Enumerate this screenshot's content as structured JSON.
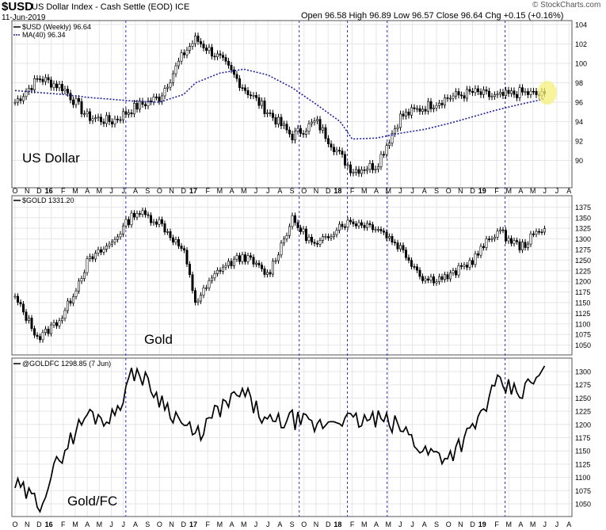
{
  "header": {
    "symbol": "$USD",
    "description": "US Dollar Index - Cash Settle (EOD) ICE",
    "date": "11-Jun-2019",
    "ohlc": "Open 96.58 High 96.89 Low 96.57 Close 96.64 Chg +0.15 (+0.16%)",
    "brand": "© StockCharts.com"
  },
  "colors": {
    "candle": "#000000",
    "ma_line": "#2020a0",
    "vline": "#3030c0",
    "highlight": "#f5f07a",
    "grid": "#e6e6e6"
  },
  "x_axis": {
    "labels": [
      "O",
      "N",
      "D",
      "16",
      "F",
      "M",
      "A",
      "M",
      "J",
      "J",
      "A",
      "S",
      "O",
      "N",
      "D",
      "17",
      "F",
      "M",
      "A",
      "M",
      "J",
      "J",
      "A",
      "S",
      "O",
      "N",
      "D",
      "18",
      "F",
      "M",
      "A",
      "M",
      "J",
      "J",
      "A",
      "S",
      "O",
      "N",
      "D",
      "19",
      "F",
      "M",
      "A",
      "M",
      "J",
      "J",
      "A"
    ],
    "bold": [
      "16",
      "17",
      "18",
      "19"
    ]
  },
  "chart_data": [
    {
      "type": "candlestick",
      "legend": [
        "$USD (Weekly) 96.64",
        "MA(40) 96.34"
      ],
      "annotation": "US Dollar",
      "ylim": [
        88,
        104
      ],
      "yticks": [
        90,
        92,
        94,
        96,
        98,
        100,
        102,
        104
      ],
      "x": [
        "2015-10",
        "2015-12",
        "2016-02",
        "2016-04",
        "2016-06",
        "2016-08",
        "2016-10",
        "2016-12",
        "2017-01",
        "2017-03",
        "2017-05",
        "2017-07",
        "2017-09",
        "2017-11",
        "2018-01",
        "2018-02",
        "2018-04",
        "2018-06",
        "2018-08",
        "2018-10",
        "2018-12",
        "2019-02",
        "2019-04",
        "2019-06"
      ],
      "series": [
        {
          "name": "$USD (Weekly)",
          "values": [
            96.0,
            98.5,
            97.5,
            94.5,
            94.0,
            95.5,
            96.5,
            101.0,
            102.5,
            100.5,
            97.5,
            95.0,
            92.5,
            94.0,
            90.5,
            89.0,
            89.5,
            94.5,
            95.5,
            96.5,
            97.0,
            96.5,
            97.0,
            96.64
          ]
        },
        {
          "name": "MA(40)",
          "values": [
            97.2,
            97.0,
            96.8,
            96.5,
            96.3,
            96.1,
            96.0,
            96.8,
            98.0,
            99.0,
            99.4,
            98.8,
            97.5,
            95.8,
            94.0,
            92.2,
            92.3,
            92.8,
            93.2,
            93.8,
            94.5,
            95.2,
            95.8,
            96.34
          ]
        }
      ]
    },
    {
      "type": "candlestick",
      "legend": [
        "$GOLD 1331.20"
      ],
      "annotation": "Gold",
      "ylim": [
        1040,
        1385
      ],
      "yticks": [
        1050,
        1075,
        1100,
        1125,
        1150,
        1175,
        1200,
        1225,
        1250,
        1275,
        1300,
        1325,
        1350,
        1375
      ],
      "x": [
        "2015-10",
        "2015-12",
        "2016-02",
        "2016-04",
        "2016-06",
        "2016-08",
        "2016-10",
        "2016-12",
        "2017-01",
        "2017-03",
        "2017-05",
        "2017-07",
        "2017-09",
        "2017-11",
        "2018-01",
        "2018-02",
        "2018-04",
        "2018-06",
        "2018-08",
        "2018-10",
        "2018-12",
        "2019-02",
        "2019-04",
        "2019-06"
      ],
      "series": [
        {
          "name": "$GOLD",
          "values": [
            1160,
            1065,
            1120,
            1245,
            1290,
            1365,
            1340,
            1270,
            1150,
            1230,
            1260,
            1215,
            1345,
            1280,
            1335,
            1340,
            1330,
            1280,
            1205,
            1210,
            1250,
            1320,
            1280,
            1331.2
          ]
        }
      ]
    },
    {
      "type": "line",
      "legend": [
        "@GOLDFC 1298.85 (7 Jun)"
      ],
      "annotation": "Gold/FC",
      "ylim": [
        1038,
        1312
      ],
      "yticks": [
        1050,
        1075,
        1100,
        1125,
        1150,
        1175,
        1200,
        1225,
        1250,
        1275,
        1300
      ],
      "x": [
        "2015-10",
        "2015-12",
        "2016-02",
        "2016-04",
        "2016-06",
        "2016-08",
        "2016-10",
        "2016-12",
        "2017-01",
        "2017-03",
        "2017-05",
        "2017-07",
        "2017-09",
        "2017-11",
        "2018-01",
        "2018-02",
        "2018-04",
        "2018-06",
        "2018-08",
        "2018-10",
        "2018-12",
        "2019-02",
        "2019-04",
        "2019-06"
      ],
      "series": [
        {
          "name": "@GOLDFC",
          "values": [
            1085,
            1050,
            1150,
            1220,
            1210,
            1305,
            1250,
            1200,
            1175,
            1230,
            1260,
            1200,
            1210,
            1195,
            1215,
            1205,
            1210,
            1195,
            1150,
            1140,
            1190,
            1275,
            1260,
            1298.85
          ]
        }
      ]
    }
  ]
}
